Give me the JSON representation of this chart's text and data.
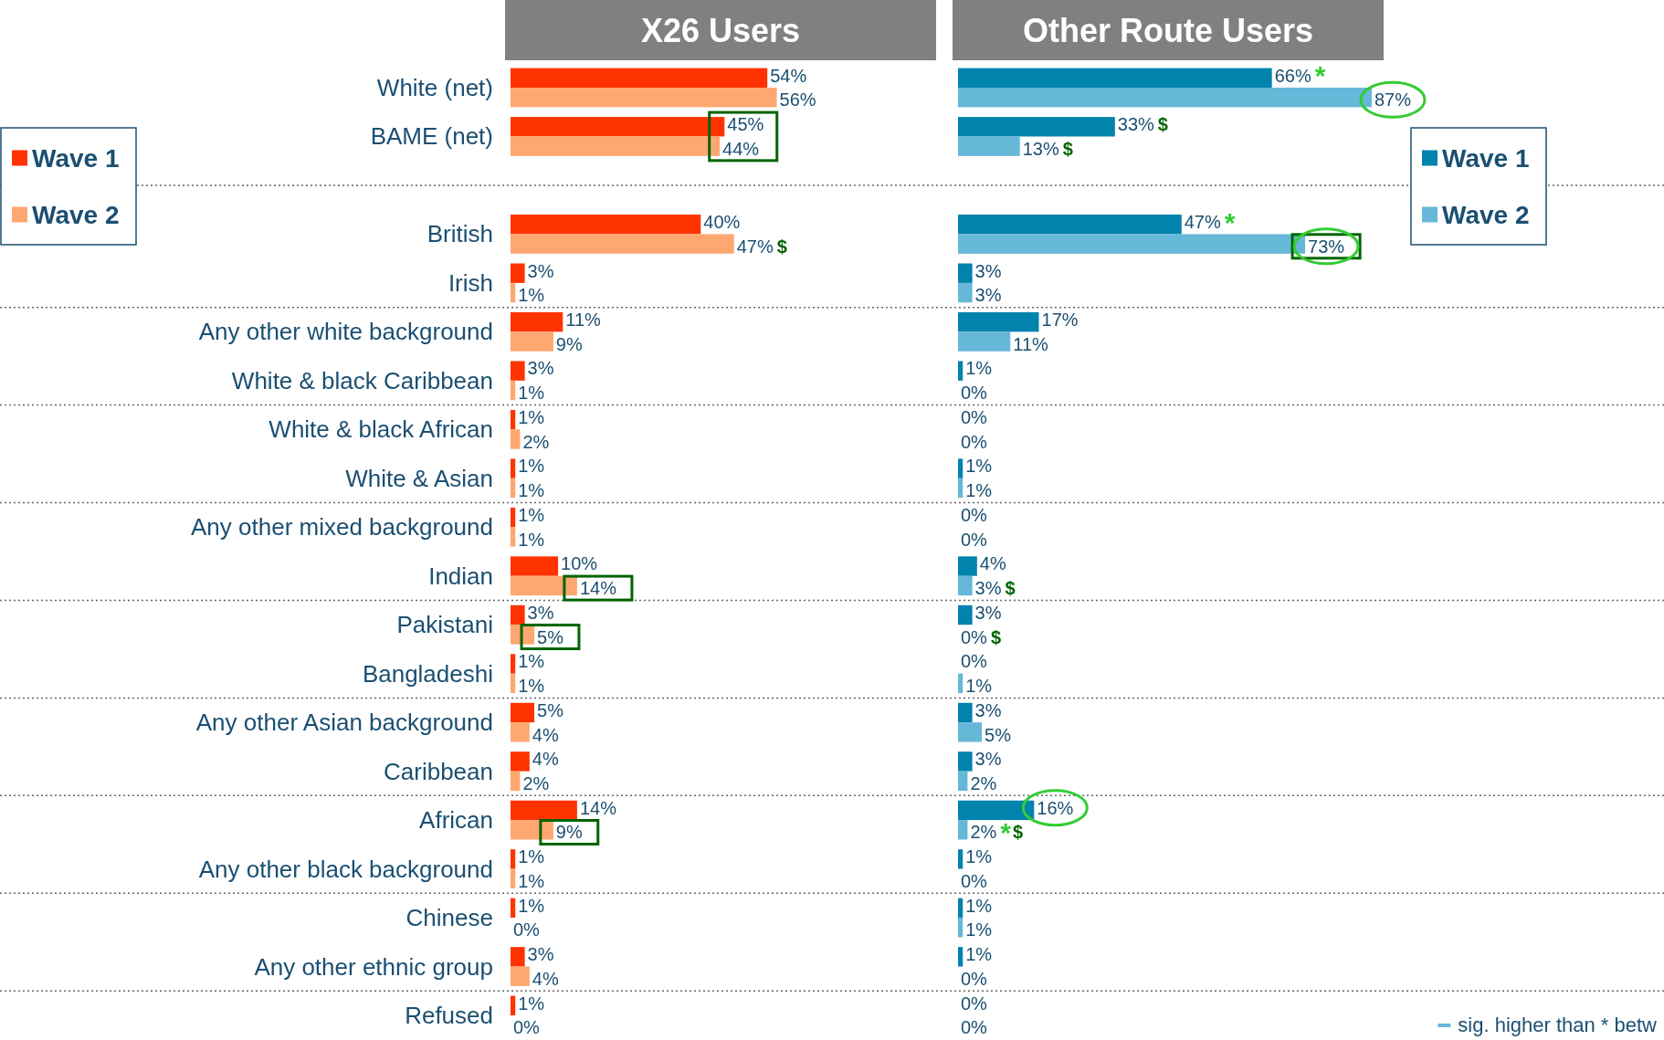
{
  "chart_data": [
    {
      "type": "bar",
      "title": "X26 Users",
      "orientation": "horizontal",
      "legend": "top left",
      "categories": [
        "White (net)",
        "BAME (net)",
        null,
        "British",
        "Irish",
        "Any other white background",
        "White & black Caribbean",
        "White & black African",
        "White & Asian",
        "Any other mixed background",
        "Indian",
        "Pakistani",
        "Bangladeshi",
        "Any other Asian background",
        "Caribbean",
        "African",
        "Any other black background",
        "Chinese",
        "Any other ethnic group",
        "Refused"
      ],
      "series": [
        {
          "name": "Wave 1",
          "color": "#ff3300",
          "values": [
            54,
            45,
            null,
            40,
            3,
            11,
            3,
            1,
            1,
            1,
            10,
            3,
            1,
            5,
            4,
            14,
            1,
            1,
            3,
            1
          ],
          "value_labels": [
            "54%",
            "45%",
            null,
            "40%",
            "3%",
            "11%",
            "3%",
            "1%",
            "1%",
            "1%",
            "10%",
            "3%",
            "1%",
            "5%",
            "4%",
            "14%",
            "1%",
            "1%",
            "3%",
            "1%"
          ]
        },
        {
          "name": "Wave 2",
          "color": "#ffa770",
          "values": [
            56,
            44,
            null,
            47,
            1,
            9,
            1,
            2,
            1,
            1,
            14,
            5,
            1,
            4,
            2,
            9,
            1,
            0,
            4,
            0
          ],
          "value_labels": [
            "56%",
            "44%",
            null,
            "47%",
            "1%",
            "9%",
            "1%",
            "2%",
            "1%",
            "1%",
            "14%",
            "5%",
            "1%",
            "4%",
            "2%",
            "9%",
            "1%",
            "0%",
            "4%",
            "0%"
          ]
        }
      ],
      "annotations": [
        {
          "text": "$",
          "x": 47,
          "y": "British"
        }
      ]
    },
    {
      "type": "bar",
      "title": "Other Route Users",
      "orientation": "horizontal",
      "legend": "top right",
      "tick_labels": false,
      "categories": [
        "White (net)",
        "BAME (net)",
        null,
        "British",
        "Irish",
        "Any other white background",
        "White & black Caribbean",
        "White & black African",
        "White & Asian",
        "Any other mixed background",
        "Indian",
        "Pakistani",
        "Bangladeshi",
        "Any other Asian background",
        "Caribbean",
        "African",
        "Any other black background",
        "Chinese",
        "Any other ethnic group",
        "Refused"
      ],
      "series": [
        {
          "name": "Wave 1",
          "color": "#0083ad",
          "values": [
            66,
            33,
            null,
            47,
            3,
            17,
            1,
            0,
            1,
            0,
            4,
            3,
            0,
            3,
            3,
            16,
            1,
            1,
            1,
            0
          ],
          "value_labels": [
            "66%",
            "33%",
            null,
            "47%",
            "3%",
            "17%",
            "1%",
            "0%",
            "1%",
            "0%",
            "4%",
            "3%",
            "0%",
            "3%",
            "3%",
            "16%",
            "1%",
            "1%",
            "1%",
            "0%"
          ]
        },
        {
          "name": "Wave 2",
          "color": "#66b8d8",
          "values": [
            87,
            13,
            null,
            73,
            3,
            11,
            0,
            0,
            1,
            0,
            3,
            0,
            1,
            5,
            2,
            2,
            0,
            1,
            0,
            0
          ],
          "value_labels": [
            "87%",
            "13%",
            null,
            "73%",
            "3%",
            "11%",
            "0%",
            "0%",
            "1%",
            "0%",
            "3%",
            "0%",
            "1%",
            "5%",
            "2%",
            "2%",
            "0%",
            "1%",
            "0%",
            "0%"
          ]
        }
      ],
      "annotations": [
        {
          "text": "*",
          "x": 66,
          "y": "White (net)"
        },
        {
          "text": "$",
          "x": 13,
          "y": "BAME (net)"
        },
        {
          "text": "$",
          "x": 33,
          "y": "BAME (net)"
        },
        {
          "text": "*",
          "x": 47,
          "y": "British"
        },
        {
          "text": "$",
          "x": 3,
          "y": "Indian"
        },
        {
          "text": "$",
          "x": 0,
          "y": "Pakistani"
        },
        {
          "text": "*",
          "x": 2,
          "y": "African"
        },
        {
          "text": "$",
          "x": 2,
          "y": "African"
        },
        "sig. higher than * betw"
      ]
    }
  ]
}
